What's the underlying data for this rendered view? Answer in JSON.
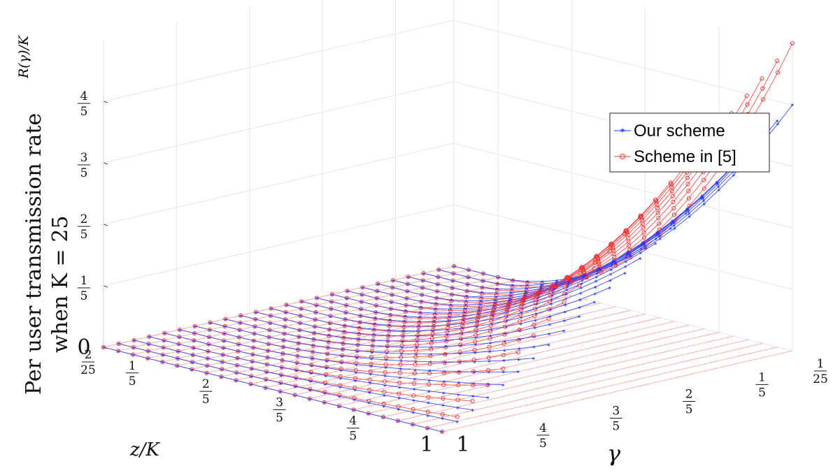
{
  "chart_data": {
    "type": "line",
    "title": "",
    "ylabel_line1": "Per user transmission rate",
    "ylabel_line2": "when K = 25",
    "zlabel": "R(γ)/K",
    "xlabel": "z/K",
    "glabel": "γ",
    "K": 25,
    "x_axis": {
      "name": "z/K",
      "range": [
        0.08,
        1
      ],
      "ticks": [
        {
          "v": 0.08,
          "num": "2",
          "den": "25"
        },
        {
          "v": 0.2,
          "num": "1",
          "den": "5"
        },
        {
          "v": 0.4,
          "num": "2",
          "den": "5"
        },
        {
          "v": 0.6,
          "num": "3",
          "den": "5"
        },
        {
          "v": 0.8,
          "num": "4",
          "den": "5"
        },
        {
          "v": 1.0,
          "text": "1"
        }
      ]
    },
    "g_axis": {
      "name": "γ",
      "range": [
        0.04,
        1
      ],
      "ticks": [
        {
          "v": 0.04,
          "num": "1",
          "den": "25"
        },
        {
          "v": 0.2,
          "num": "1",
          "den": "5"
        },
        {
          "v": 0.4,
          "num": "2",
          "den": "5"
        },
        {
          "v": 0.6,
          "num": "3",
          "den": "5"
        },
        {
          "v": 0.8,
          "num": "4",
          "den": "5"
        },
        {
          "v": 1.0,
          "text": "1"
        }
      ]
    },
    "z_axis": {
      "name": "R(γ)/K",
      "range": [
        0,
        1
      ],
      "ticks": [
        {
          "v": 0,
          "text": "0"
        },
        {
          "v": 0.2,
          "num": "1",
          "den": "5"
        },
        {
          "v": 0.4,
          "num": "2",
          "den": "5"
        },
        {
          "v": 0.6,
          "num": "3",
          "den": "5"
        },
        {
          "v": 0.8,
          "num": "4",
          "den": "5"
        }
      ]
    },
    "grid": true,
    "legend_position": "top-right",
    "series": [
      {
        "name": "Our scheme",
        "color": "#1f3bff",
        "marker": "star",
        "max_per_user_rate": 0.8,
        "rule": "piecewise: 0 for z/K ≤ γ, rising to 0.8·(z/K − γ)/(1 − γ)^… as z/K → 1"
      },
      {
        "name": "Scheme in [5]",
        "color": "#ff3030",
        "marker": "circle",
        "max_per_user_rate": 1.0,
        "rule": "piecewise: 0 for z/K ≤ γ, rising convexly to 1 at z/K = 1, γ = 1/25"
      }
    ]
  }
}
